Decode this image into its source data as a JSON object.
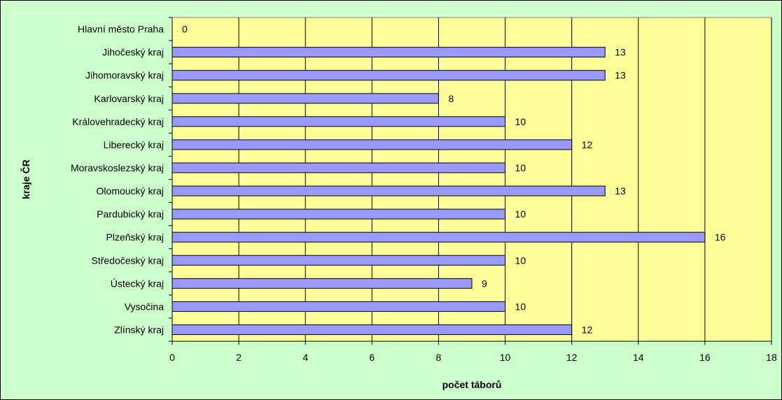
{
  "chart_data": {
    "type": "bar",
    "orientation": "horizontal",
    "title": "",
    "xlabel": "počet táborů",
    "ylabel": "kraje ČR",
    "categories": [
      "Hlavní město Praha",
      "Jihočeský kraj",
      "Jihomoravský kraj",
      "Karlovarský kraj",
      "Královehradecký kraj",
      "Liberecký kraj",
      "Moravskoslezský kraj",
      "Olomoucký kraj",
      "Pardubický kraj",
      "Plzeňský kraj",
      "Středočeský kraj",
      "Ústecký kraj",
      "Vysočina",
      "Zlínský kraj"
    ],
    "values": [
      0,
      13,
      13,
      8,
      10,
      12,
      10,
      13,
      10,
      16,
      10,
      9,
      10,
      12
    ],
    "xlim": [
      0,
      18
    ],
    "xticks": [
      0,
      2,
      4,
      6,
      8,
      10,
      12,
      14,
      16,
      18
    ],
    "grid": true,
    "legend": "none",
    "colors": {
      "bar_fill": "#9999ff",
      "bar_stroke": "#000000",
      "plot_background": "#ffff99",
      "chart_background": "#ccffcc",
      "gridline": "#000000"
    }
  }
}
